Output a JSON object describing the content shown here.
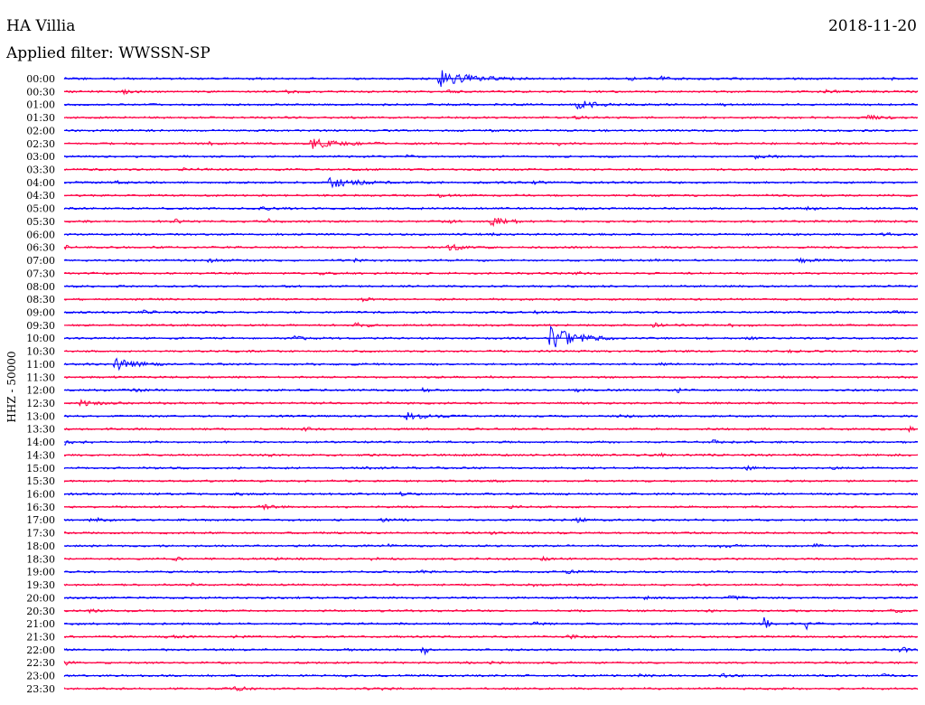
{
  "header": {
    "station": "HA Villia",
    "filter": "Applied filter: WWSSN-SP",
    "date": "2018-11-20",
    "channel": "HHZ - 50000"
  },
  "colors": {
    "blue": "#0000ff",
    "red": "#ff0044"
  },
  "chart_data": {
    "type": "line",
    "title": "HA Villia",
    "subtitle": "Applied filter: WWSSN-SP",
    "ylabel": "HHZ - 50000",
    "grid": false,
    "traces": [
      {
        "label": "00:00",
        "color": "blue",
        "events": [
          [
            0.44,
            30,
            2.2
          ],
          [
            0.7,
            8,
            0.4
          ],
          [
            0.66,
            14,
            0.4
          ],
          [
            0.97,
            6,
            0.3
          ]
        ]
      },
      {
        "label": "00:30",
        "color": "red",
        "events": [
          [
            0.07,
            10,
            0.5
          ],
          [
            0.26,
            10,
            0.35
          ],
          [
            0.89,
            12,
            0.4
          ],
          [
            0.45,
            8,
            0.3
          ]
        ]
      },
      {
        "label": "01:00",
        "color": "blue",
        "events": [
          [
            0.6,
            18,
            1.2
          ],
          [
            0.77,
            6,
            0.3
          ]
        ]
      },
      {
        "label": "01:30",
        "color": "red",
        "events": [
          [
            0.94,
            12,
            0.7
          ],
          [
            0.6,
            8,
            0.3
          ]
        ]
      },
      {
        "label": "02:00",
        "color": "blue",
        "events": [
          [
            0.5,
            6,
            0.25
          ]
        ]
      },
      {
        "label": "02:30",
        "color": "red",
        "events": [
          [
            0.29,
            28,
            1.3
          ],
          [
            0.58,
            8,
            0.35
          ],
          [
            0.17,
            6,
            0.3
          ]
        ]
      },
      {
        "label": "03:00",
        "color": "blue",
        "events": [
          [
            0.4,
            6,
            0.3
          ],
          [
            0.81,
            10,
            0.4
          ]
        ]
      },
      {
        "label": "03:30",
        "color": "red",
        "events": [
          [
            0.14,
            12,
            0.5
          ]
        ]
      },
      {
        "label": "04:00",
        "color": "blue",
        "events": [
          [
            0.31,
            24,
            1.4
          ],
          [
            0.06,
            8,
            0.4
          ],
          [
            0.55,
            10,
            0.4
          ]
        ]
      },
      {
        "label": "04:30",
        "color": "red",
        "events": [
          [
            0.44,
            10,
            0.3
          ]
        ]
      },
      {
        "label": "05:00",
        "color": "blue",
        "events": [
          [
            0.23,
            12,
            0.5
          ],
          [
            0.87,
            10,
            0.4
          ],
          [
            0.6,
            8,
            0.3
          ]
        ]
      },
      {
        "label": "05:30",
        "color": "red",
        "events": [
          [
            0.13,
            5,
            0.6
          ],
          [
            0.24,
            5,
            0.5
          ],
          [
            0.5,
            20,
            1.1
          ],
          [
            0.45,
            10,
            0.4
          ]
        ]
      },
      {
        "label": "06:00",
        "color": "blue",
        "events": [
          [
            0.96,
            8,
            0.4
          ],
          [
            0.5,
            6,
            0.25
          ]
        ]
      },
      {
        "label": "06:30",
        "color": "red",
        "events": [
          [
            0.0,
            6,
            0.7
          ],
          [
            0.45,
            12,
            0.9
          ]
        ]
      },
      {
        "label": "07:00",
        "color": "blue",
        "events": [
          [
            0.17,
            10,
            0.45
          ],
          [
            0.34,
            6,
            0.35
          ],
          [
            0.69,
            6,
            0.4
          ],
          [
            0.86,
            14,
            0.5
          ]
        ]
      },
      {
        "label": "07:30",
        "color": "red",
        "events": [
          [
            0.3,
            8,
            0.3
          ],
          [
            0.6,
            8,
            0.3
          ]
        ]
      },
      {
        "label": "08:00",
        "color": "blue",
        "events": [
          [
            0.5,
            6,
            0.2
          ]
        ]
      },
      {
        "label": "08:30",
        "color": "red",
        "events": [
          [
            0.35,
            12,
            0.4
          ],
          [
            0.1,
            8,
            0.35
          ]
        ]
      },
      {
        "label": "09:00",
        "color": "blue",
        "events": [
          [
            0.09,
            12,
            0.5
          ],
          [
            0.55,
            4,
            0.9
          ],
          [
            0.97,
            8,
            0.4
          ]
        ]
      },
      {
        "label": "09:30",
        "color": "red",
        "events": [
          [
            0.34,
            12,
            0.6
          ],
          [
            0.69,
            12,
            0.6
          ],
          [
            0.78,
            10,
            0.4
          ]
        ]
      },
      {
        "label": "10:00",
        "color": "blue",
        "events": [
          [
            0.57,
            24,
            3.2
          ],
          [
            0.27,
            10,
            0.4
          ],
          [
            0.8,
            6,
            0.3
          ]
        ]
      },
      {
        "label": "10:30",
        "color": "red",
        "events": [
          [
            0.2,
            8,
            0.3
          ],
          [
            0.85,
            8,
            0.3
          ]
        ]
      },
      {
        "label": "11:00",
        "color": "blue",
        "events": [
          [
            0.06,
            20,
            1.5
          ],
          [
            0.7,
            6,
            0.3
          ]
        ]
      },
      {
        "label": "11:30",
        "color": "red",
        "events": [
          [
            0.5,
            6,
            0.25
          ]
        ]
      },
      {
        "label": "12:00",
        "color": "blue",
        "events": [
          [
            0.08,
            12,
            0.5
          ],
          [
            0.42,
            10,
            0.4
          ],
          [
            0.72,
            2,
            1.0
          ],
          [
            0.6,
            8,
            0.3
          ]
        ]
      },
      {
        "label": "12:30",
        "color": "red",
        "events": [
          [
            0.02,
            14,
            0.7
          ]
        ]
      },
      {
        "label": "13:00",
        "color": "blue",
        "events": [
          [
            0.4,
            22,
            1.0
          ],
          [
            0.65,
            10,
            0.4
          ]
        ]
      },
      {
        "label": "13:30",
        "color": "red",
        "events": [
          [
            0.28,
            10,
            0.4
          ],
          [
            0.99,
            6,
            0.6
          ]
        ]
      },
      {
        "label": "14:00",
        "color": "blue",
        "events": [
          [
            0.0,
            10,
            0.6
          ],
          [
            0.76,
            14,
            0.5
          ]
        ]
      },
      {
        "label": "14:30",
        "color": "red",
        "events": [
          [
            0.24,
            8,
            0.3
          ],
          [
            0.7,
            8,
            0.3
          ]
        ]
      },
      {
        "label": "15:00",
        "color": "blue",
        "events": [
          [
            0.8,
            10,
            0.4
          ],
          [
            0.35,
            8,
            0.3
          ],
          [
            0.9,
            6,
            0.3
          ]
        ]
      },
      {
        "label": "15:30",
        "color": "red",
        "events": [
          [
            0.5,
            6,
            0.25
          ]
        ]
      },
      {
        "label": "16:00",
        "color": "blue",
        "events": [
          [
            0.39,
            10,
            0.45
          ],
          [
            0.2,
            8,
            0.3
          ]
        ]
      },
      {
        "label": "16:30",
        "color": "red",
        "events": [
          [
            0.23,
            14,
            0.7
          ],
          [
            0.52,
            10,
            0.35
          ]
        ]
      },
      {
        "label": "17:00",
        "color": "blue",
        "events": [
          [
            0.03,
            14,
            0.5
          ],
          [
            0.37,
            12,
            0.45
          ],
          [
            0.6,
            12,
            0.45
          ]
        ]
      },
      {
        "label": "17:30",
        "color": "red",
        "events": [
          [
            0.5,
            6,
            0.25
          ]
        ]
      },
      {
        "label": "18:00",
        "color": "blue",
        "events": [
          [
            0.77,
            14,
            0.5
          ],
          [
            0.88,
            10,
            0.45
          ],
          [
            0.38,
            6,
            0.3
          ]
        ]
      },
      {
        "label": "18:30",
        "color": "red",
        "events": [
          [
            0.13,
            10,
            0.4
          ],
          [
            0.56,
            10,
            0.4
          ],
          [
            0.36,
            10,
            0.4
          ],
          [
            0.25,
            8,
            0.35
          ]
        ]
      },
      {
        "label": "19:00",
        "color": "blue",
        "events": [
          [
            0.59,
            10,
            0.4
          ],
          [
            0.42,
            4,
            0.4
          ]
        ]
      },
      {
        "label": "19:30",
        "color": "red",
        "events": [
          [
            0.15,
            6,
            0.3
          ],
          [
            0.55,
            6,
            0.3
          ]
        ]
      },
      {
        "label": "20:00",
        "color": "blue",
        "events": [
          [
            0.78,
            12,
            0.4
          ],
          [
            0.68,
            8,
            0.3
          ]
        ]
      },
      {
        "label": "20:30",
        "color": "red",
        "events": [
          [
            0.03,
            8,
            0.4
          ],
          [
            0.97,
            12,
            0.6
          ],
          [
            0.75,
            6,
            0.35
          ]
        ]
      },
      {
        "label": "21:00",
        "color": "blue",
        "events": [
          [
            0.82,
            5,
            1.6
          ],
          [
            0.87,
            5,
            1.2
          ],
          [
            0.55,
            8,
            0.35
          ]
        ]
      },
      {
        "label": "21:30",
        "color": "red",
        "events": [
          [
            0.12,
            10,
            0.4
          ],
          [
            0.59,
            12,
            0.5
          ],
          [
            0.2,
            8,
            0.35
          ]
        ]
      },
      {
        "label": "22:00",
        "color": "blue",
        "events": [
          [
            0.42,
            5,
            1.5
          ],
          [
            0.98,
            8,
            0.8
          ],
          [
            0.33,
            6,
            0.3
          ]
        ]
      },
      {
        "label": "22:30",
        "color": "red",
        "events": [
          [
            0.0,
            6,
            0.6
          ],
          [
            0.5,
            8,
            0.3
          ]
        ]
      },
      {
        "label": "23:00",
        "color": "blue",
        "events": [
          [
            0.67,
            10,
            0.4
          ],
          [
            0.77,
            10,
            0.45
          ],
          [
            0.33,
            4,
            0.3
          ],
          [
            0.96,
            6,
            0.35
          ]
        ]
      },
      {
        "label": "23:30",
        "color": "red",
        "events": [
          [
            0.2,
            12,
            0.45
          ],
          [
            0.37,
            8,
            0.4
          ]
        ]
      }
    ]
  }
}
